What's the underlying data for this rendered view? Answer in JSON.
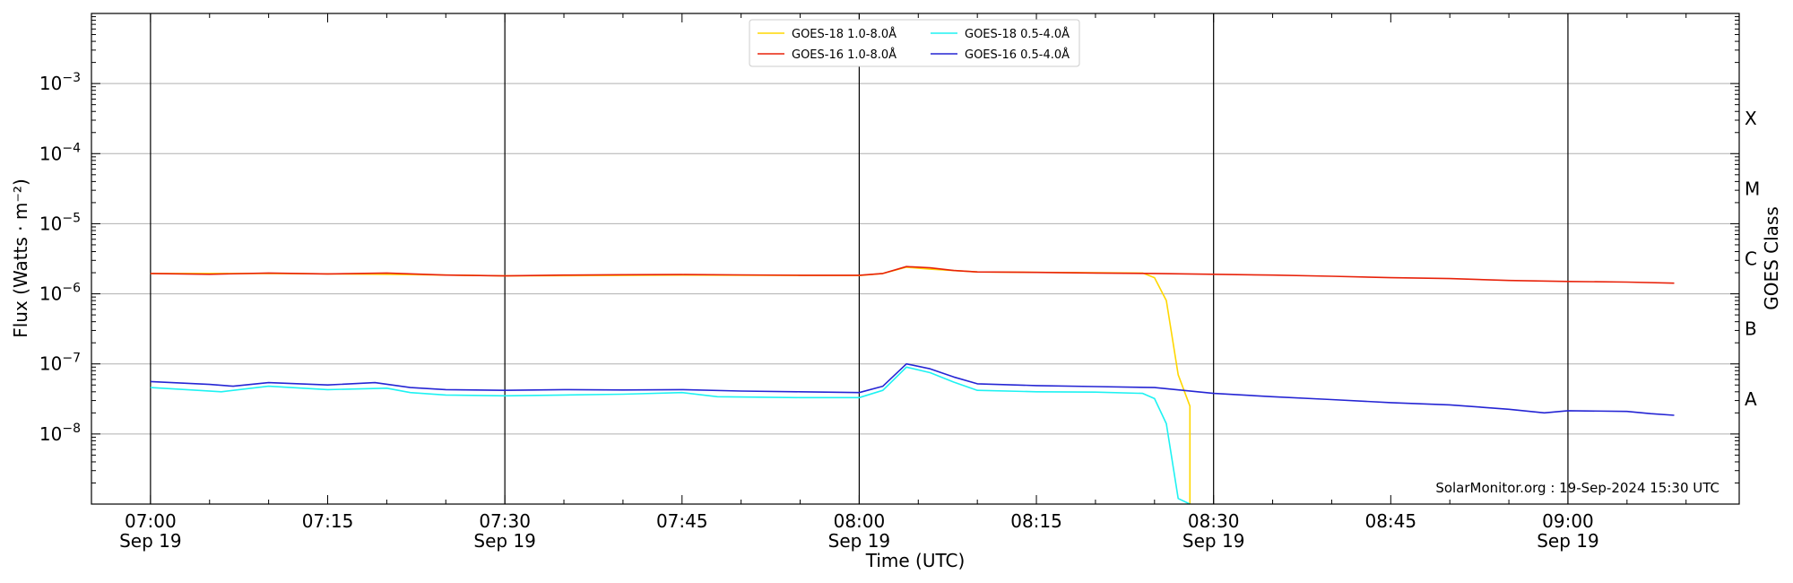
{
  "chart_data": {
    "type": "line",
    "xlabel": "Time (UTC)",
    "ylabel": "Flux (Watts · m⁻²)",
    "right_axis_label": "GOES Class",
    "y_scale": "log",
    "ylim": [
      1e-09,
      0.01
    ],
    "xlim": [
      "07:00",
      "09:10"
    ],
    "x_tick_labels": [
      {
        "time": "07:00",
        "label": "07:00",
        "sublabel": "Sep 19"
      },
      {
        "time": "07:15",
        "label": "07:15",
        "sublabel": ""
      },
      {
        "time": "07:30",
        "label": "07:30",
        "sublabel": "Sep 19"
      },
      {
        "time": "07:45",
        "label": "07:45",
        "sublabel": ""
      },
      {
        "time": "08:00",
        "label": "08:00",
        "sublabel": "Sep 19"
      },
      {
        "time": "08:15",
        "label": "08:15",
        "sublabel": ""
      },
      {
        "time": "08:30",
        "label": "08:30",
        "sublabel": "Sep 19"
      },
      {
        "time": "08:45",
        "label": "08:45",
        "sublabel": ""
      },
      {
        "time": "09:00",
        "label": "09:00",
        "sublabel": "Sep 19"
      }
    ],
    "y_tick_labels": [
      {
        "value": 1e-08,
        "base": "10",
        "exp": "−8"
      },
      {
        "value": 1e-07,
        "base": "10",
        "exp": "−7"
      },
      {
        "value": 1e-06,
        "base": "10",
        "exp": "−6"
      },
      {
        "value": 1e-05,
        "base": "10",
        "exp": "−5"
      },
      {
        "value": 0.0001,
        "base": "10",
        "exp": "−4"
      },
      {
        "value": 0.001,
        "base": "10",
        "exp": "−3"
      }
    ],
    "goes_classes": [
      {
        "label": "A",
        "value": 3.16e-08
      },
      {
        "label": "B",
        "value": 3.16e-07
      },
      {
        "label": "C",
        "value": 3.16e-06
      },
      {
        "label": "M",
        "value": 3.16e-05
      },
      {
        "label": "X",
        "value": 0.000316
      }
    ],
    "vertical_lines": [
      "07:00",
      "07:30",
      "08:00",
      "08:30",
      "09:00"
    ],
    "grid": "horizontal",
    "legend_placement": "top-center",
    "watermark": "SolarMonitor.org : 19-Sep-2024 15:30 UTC",
    "series": [
      {
        "name": "GOES-18 1.0-8.0Å",
        "color": "#ffd700",
        "points": [
          [
            "07:00",
            1.95e-06
          ],
          [
            "07:10",
            1.95e-06
          ],
          [
            "07:20",
            1.9e-06
          ],
          [
            "07:30",
            1.8e-06
          ],
          [
            "07:45",
            1.85e-06
          ],
          [
            "08:00",
            1.82e-06
          ],
          [
            "08:02",
            1.95e-06
          ],
          [
            "08:04",
            2.4e-06
          ],
          [
            "08:06",
            2.25e-06
          ],
          [
            "08:10",
            2.05e-06
          ],
          [
            "08:20",
            2e-06
          ],
          [
            "08:24",
            1.98e-06
          ],
          [
            "08:25",
            1.7e-06
          ],
          [
            "08:26",
            8e-07
          ],
          [
            "08:27",
            7e-08
          ],
          [
            "08:28",
            2.5e-08
          ],
          [
            "08:28",
            1e-09
          ]
        ]
      },
      {
        "name": "GOES-16 1.0-8.0Å",
        "color": "#e8220a",
        "points": [
          [
            "07:00",
            1.95e-06
          ],
          [
            "07:05",
            1.9e-06
          ],
          [
            "07:10",
            1.98e-06
          ],
          [
            "07:15",
            1.92e-06
          ],
          [
            "07:20",
            1.98e-06
          ],
          [
            "07:25",
            1.85e-06
          ],
          [
            "07:30",
            1.8e-06
          ],
          [
            "07:35",
            1.85e-06
          ],
          [
            "07:40",
            1.87e-06
          ],
          [
            "07:45",
            1.88e-06
          ],
          [
            "07:50",
            1.86e-06
          ],
          [
            "07:55",
            1.84e-06
          ],
          [
            "08:00",
            1.84e-06
          ],
          [
            "08:02",
            1.95e-06
          ],
          [
            "08:04",
            2.45e-06
          ],
          [
            "08:06",
            2.35e-06
          ],
          [
            "08:08",
            2.15e-06
          ],
          [
            "08:10",
            2.05e-06
          ],
          [
            "08:15",
            2.02e-06
          ],
          [
            "08:20",
            1.98e-06
          ],
          [
            "08:25",
            1.95e-06
          ],
          [
            "08:30",
            1.9e-06
          ],
          [
            "08:35",
            1.85e-06
          ],
          [
            "08:40",
            1.78e-06
          ],
          [
            "08:45",
            1.7e-06
          ],
          [
            "08:50",
            1.65e-06
          ],
          [
            "08:55",
            1.55e-06
          ],
          [
            "09:00",
            1.5e-06
          ],
          [
            "09:05",
            1.47e-06
          ],
          [
            "09:09",
            1.42e-06
          ]
        ]
      },
      {
        "name": "GOES-18 0.5-4.0Å",
        "color": "#1ef2f2",
        "points": [
          [
            "07:00",
            4.6e-08
          ],
          [
            "07:04",
            4.2e-08
          ],
          [
            "07:06",
            4e-08
          ],
          [
            "07:10",
            4.8e-08
          ],
          [
            "07:15",
            4.3e-08
          ],
          [
            "07:20",
            4.5e-08
          ],
          [
            "07:22",
            3.9e-08
          ],
          [
            "07:25",
            3.6e-08
          ],
          [
            "07:30",
            3.5e-08
          ],
          [
            "07:35",
            3.6e-08
          ],
          [
            "07:40",
            3.7e-08
          ],
          [
            "07:45",
            3.9e-08
          ],
          [
            "07:48",
            3.4e-08
          ],
          [
            "07:55",
            3.3e-08
          ],
          [
            "08:00",
            3.3e-08
          ],
          [
            "08:02",
            4.2e-08
          ],
          [
            "08:04",
            9e-08
          ],
          [
            "08:06",
            7.5e-08
          ],
          [
            "08:08",
            5.5e-08
          ],
          [
            "08:10",
            4.2e-08
          ],
          [
            "08:15",
            4e-08
          ],
          [
            "08:20",
            3.95e-08
          ],
          [
            "08:24",
            3.8e-08
          ],
          [
            "08:25",
            3.2e-08
          ],
          [
            "08:26",
            1.4e-08
          ],
          [
            "08:27",
            1.2e-09
          ],
          [
            "08:28",
            1e-09
          ]
        ]
      },
      {
        "name": "GOES-16 0.5-4.0Å",
        "color": "#2525d4",
        "points": [
          [
            "07:00",
            5.6e-08
          ],
          [
            "07:05",
            5.1e-08
          ],
          [
            "07:07",
            4.8e-08
          ],
          [
            "07:10",
            5.4e-08
          ],
          [
            "07:15",
            5e-08
          ],
          [
            "07:19",
            5.4e-08
          ],
          [
            "07:22",
            4.6e-08
          ],
          [
            "07:25",
            4.3e-08
          ],
          [
            "07:30",
            4.2e-08
          ],
          [
            "07:35",
            4.3e-08
          ],
          [
            "07:40",
            4.25e-08
          ],
          [
            "07:45",
            4.3e-08
          ],
          [
            "07:50",
            4.1e-08
          ],
          [
            "07:55",
            4e-08
          ],
          [
            "08:00",
            3.9e-08
          ],
          [
            "08:02",
            4.8e-08
          ],
          [
            "08:04",
            1e-07
          ],
          [
            "08:06",
            8.5e-08
          ],
          [
            "08:08",
            6.5e-08
          ],
          [
            "08:10",
            5.2e-08
          ],
          [
            "08:15",
            4.9e-08
          ],
          [
            "08:20",
            4.75e-08
          ],
          [
            "08:25",
            4.6e-08
          ],
          [
            "08:30",
            3.8e-08
          ],
          [
            "08:35",
            3.4e-08
          ],
          [
            "08:40",
            3.1e-08
          ],
          [
            "08:45",
            2.8e-08
          ],
          [
            "08:50",
            2.6e-08
          ],
          [
            "08:55",
            2.25e-08
          ],
          [
            "08:58",
            2e-08
          ],
          [
            "09:00",
            2.15e-08
          ],
          [
            "09:05",
            2.1e-08
          ],
          [
            "09:07",
            1.95e-08
          ],
          [
            "09:09",
            1.85e-08
          ]
        ]
      }
    ]
  }
}
